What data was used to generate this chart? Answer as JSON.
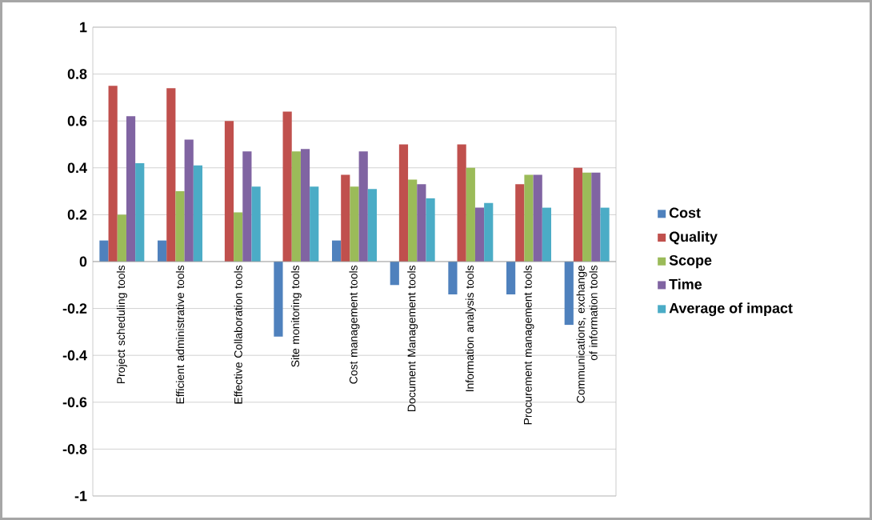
{
  "chart_data": {
    "type": "bar",
    "categories": [
      "Project scheduling tools",
      "Efficient administrative tools",
      "Effective Collaboration tools",
      "Site monitoring tools",
      "Cost management tools",
      "Document Management tools",
      "Information analysis tools",
      "Procurement management tools",
      "Communications, exchange of information tools"
    ],
    "series": [
      {
        "name": "Cost",
        "color": "#4f81bd",
        "values": [
          0.09,
          0.09,
          0,
          -0.32,
          0.09,
          -0.1,
          -0.14,
          -0.14,
          -0.27
        ]
      },
      {
        "name": "Quality",
        "color": "#c0504d",
        "values": [
          0.75,
          0.74,
          0.6,
          0.64,
          0.37,
          0.5,
          0.5,
          0.33,
          0.4
        ]
      },
      {
        "name": "Scope",
        "color": "#9bbb59",
        "values": [
          0.2,
          0.3,
          0.21,
          0.47,
          0.32,
          0.35,
          0.4,
          0.37,
          0.38
        ]
      },
      {
        "name": "Time",
        "color": "#8064a2",
        "values": [
          0.62,
          0.52,
          0.47,
          0.48,
          0.47,
          0.33,
          0.23,
          0.37,
          0.38
        ]
      },
      {
        "name": "Average of impact",
        "color": "#4bacc6",
        "values": [
          0.42,
          0.41,
          0.32,
          0.32,
          0.31,
          0.27,
          0.25,
          0.23,
          0.23
        ]
      }
    ],
    "ylim": [
      -1,
      1
    ],
    "yticks": [
      -1,
      -0.8,
      -0.6,
      -0.4,
      -0.2,
      0,
      0.2,
      0.4,
      0.6,
      0.8,
      1
    ],
    "grid": "y",
    "legend": "right"
  }
}
